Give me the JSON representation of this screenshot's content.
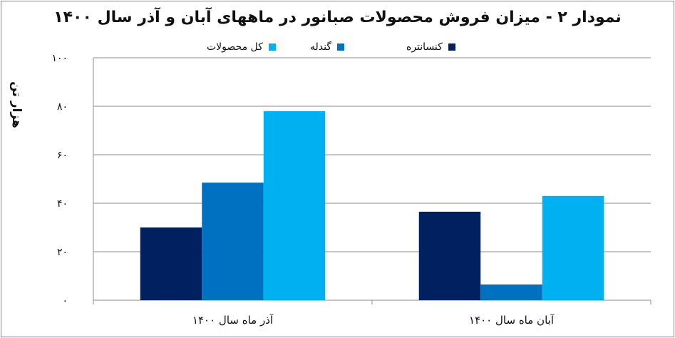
{
  "chart_data": {
    "type": "bar",
    "title": "نمودار ۲ - میزان فروش محصولات صبانور در ماههای آبان و آذر سال ۱۴۰۰",
    "xlabel": "",
    "ylabel": "هزار تن",
    "ylim": [
      0,
      100
    ],
    "yticks": [
      0,
      20,
      40,
      60,
      80,
      100
    ],
    "ytick_labels": [
      "۰",
      "۲۰",
      "۴۰",
      "۶۰",
      "۸۰",
      "۱۰۰"
    ],
    "categories": [
      "آذر ماه سال ۱۴۰۰",
      "آبان ماه سال ۱۴۰۰"
    ],
    "series": [
      {
        "name": "کنسانتره",
        "color": "#002060",
        "values": [
          30,
          36.5
        ]
      },
      {
        "name": "گندله",
        "color": "#0070c0",
        "values": [
          48.5,
          6.5
        ]
      },
      {
        "name": "کل محصولات",
        "color": "#00b0f0",
        "values": [
          78,
          43
        ]
      }
    ],
    "grid": true,
    "legend_position": "top"
  }
}
